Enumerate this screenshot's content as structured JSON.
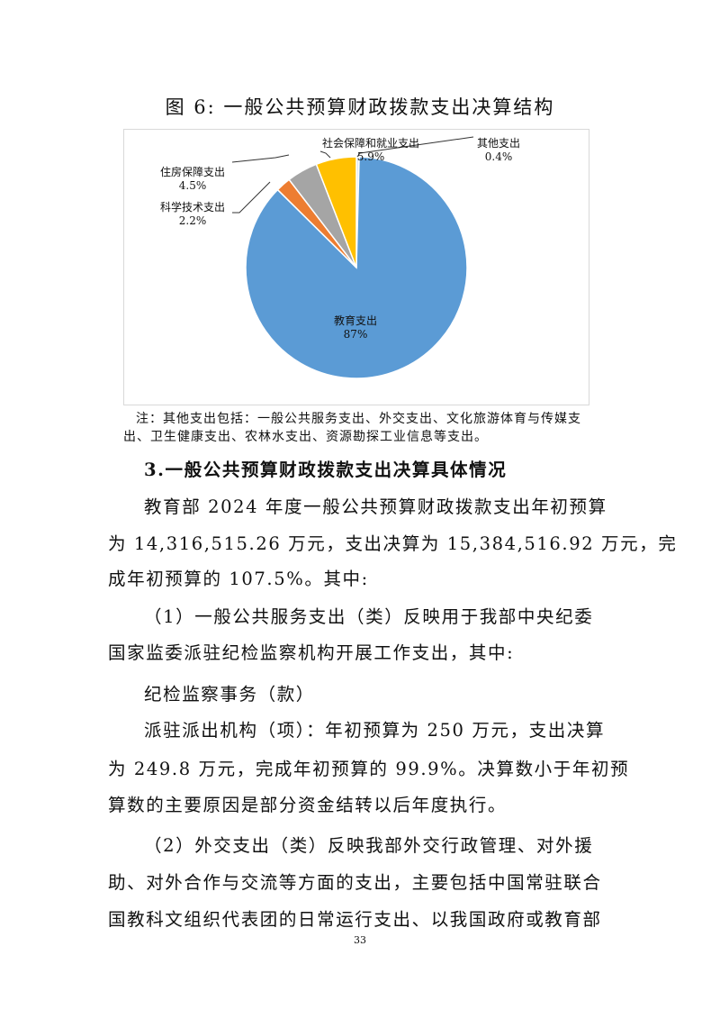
{
  "figure_title": "图 6:  一般公共预算财政拨款支出决算结构",
  "chart_data": {
    "type": "pie",
    "title": "图 6:  一般公共预算财政拨款支出决算结构",
    "start": "top",
    "direction": "clockwise",
    "slices": [
      {
        "label": "其他支出",
        "value": 0.4,
        "display": "0.4%",
        "color": "#D9E6F5"
      },
      {
        "label": "教育支出",
        "value": 87,
        "display": "87%",
        "color": "#5B9BD5"
      },
      {
        "label": "科学技术支出",
        "value": 2.2,
        "display": "2.2%",
        "color": "#ED7D31"
      },
      {
        "label": "住房保障支出",
        "value": 4.5,
        "display": "4.5%",
        "color": "#A5A5A5"
      },
      {
        "label": "社会保障和就业支出",
        "value": 5.9,
        "display": "5.9%",
        "color": "#FFC000"
      }
    ]
  },
  "note": "注：其他支出包括：一般公共服务支出、外交支出、文化旅游体育与传媒支出、卫生健康支出、农林水支出、资源勘探工业信息等支出。",
  "lines": [
    "3.一般公共预算财政拨款支出决算具体情况",
    "教育部 2024 年度一般公共预算财政拨款支出年初预算",
    "为 14,316,515.26 万元，支出决算为 15,384,516.92 万元，完",
    "成年初预算的 107.5%。其中:",
    "（1）一般公共服务支出（类）反映用于我部中央纪委",
    "国家监委派驻纪检监察机构开展工作支出，其中:",
    "纪检监察事务（款）",
    "派驻派出机构（项）：年初预算为 250 万元，支出决算",
    "为 249.8 万元，完成年初预算的 99.9%。决算数小于年初预",
    "算数的主要原因是部分资金结转以后年度执行。",
    "（2）外交支出（类）反映我部外交行政管理、对外援",
    "助、对外合作与交流等方面的支出，主要包括中国常驻联合",
    "国教科文组织代表团的日常运行支出、以我国政府或教育部"
  ],
  "page_number": "33"
}
